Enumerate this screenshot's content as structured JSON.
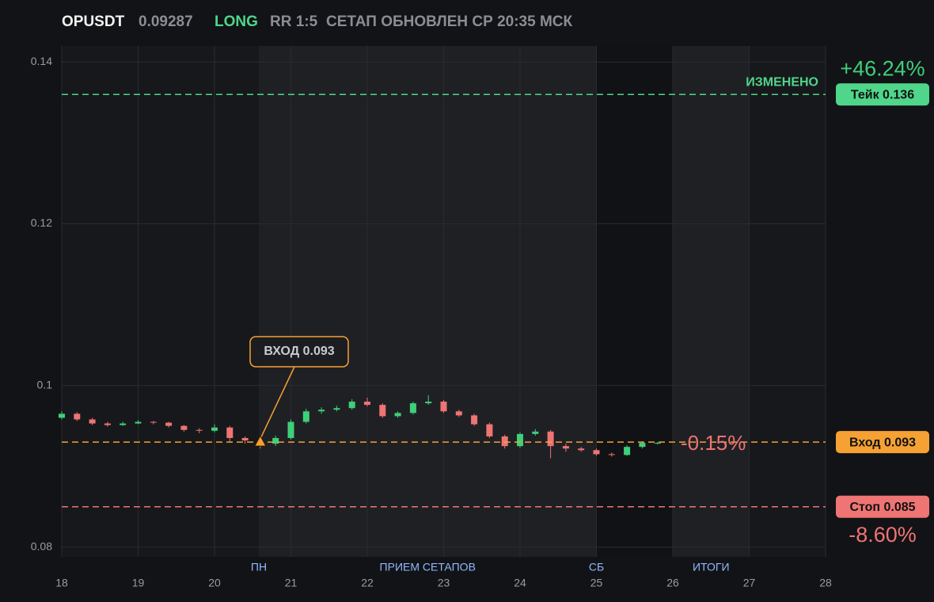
{
  "chart_data": {
    "type": "candlestick",
    "header": {
      "symbol": "OPUSDT",
      "price": "0.09287",
      "side": "LONG",
      "rr": "RR 1:5",
      "updated": "СЕТАП ОБНОВЛЕН СР 20:35 МСК"
    },
    "xlim": [
      18,
      28
    ],
    "xticks": [
      18,
      19,
      20,
      21,
      22,
      23,
      24,
      25,
      26,
      27,
      28
    ],
    "ylim": [
      0.0788,
      0.142
    ],
    "yticks": [
      0.08,
      0.1,
      0.12,
      0.14
    ],
    "grid": true,
    "up_color": "#3fcf7a",
    "down_color": "#ef7474",
    "x": [
      18.0,
      18.2,
      18.4,
      18.6,
      18.8,
      19.0,
      19.2,
      19.4,
      19.6,
      19.8,
      20.0,
      20.2,
      20.4,
      20.6,
      20.8,
      21.0,
      21.2,
      21.4,
      21.6,
      21.8,
      22.0,
      22.2,
      22.4,
      22.6,
      22.8,
      23.0,
      23.2,
      23.4,
      23.6,
      23.8,
      24.0,
      24.2,
      24.4,
      24.6,
      24.8,
      25.0,
      25.2,
      25.4,
      25.6,
      25.8
    ],
    "open": [
      0.096,
      0.0965,
      0.0958,
      0.0953,
      0.0951,
      0.0953,
      0.0955,
      0.0954,
      0.095,
      0.0945,
      0.0944,
      0.0948,
      0.0935,
      0.0932,
      0.0928,
      0.0935,
      0.0955,
      0.0968,
      0.097,
      0.0972,
      0.098,
      0.0976,
      0.0962,
      0.0966,
      0.0978,
      0.098,
      0.0968,
      0.0963,
      0.0952,
      0.0937,
      0.0925,
      0.094,
      0.0943,
      0.0925,
      0.0922,
      0.092,
      0.0915,
      0.0914,
      0.0924,
      0.0929
    ],
    "high": [
      0.0968,
      0.0967,
      0.096,
      0.0955,
      0.0955,
      0.0957,
      0.0956,
      0.0955,
      0.0951,
      0.0947,
      0.0952,
      0.095,
      0.0937,
      0.0934,
      0.0938,
      0.0958,
      0.0971,
      0.0973,
      0.0975,
      0.0983,
      0.0985,
      0.0978,
      0.0968,
      0.098,
      0.0988,
      0.0982,
      0.097,
      0.0965,
      0.0954,
      0.0939,
      0.0942,
      0.0946,
      0.0945,
      0.0928,
      0.0924,
      0.0922,
      0.0917,
      0.0926,
      0.0931,
      0.093
    ],
    "low": [
      0.0958,
      0.0956,
      0.0951,
      0.0949,
      0.095,
      0.0952,
      0.0952,
      0.0948,
      0.0943,
      0.0941,
      0.0942,
      0.093,
      0.0928,
      0.0922,
      0.0925,
      0.0933,
      0.0953,
      0.0965,
      0.0968,
      0.097,
      0.0974,
      0.096,
      0.096,
      0.0964,
      0.0976,
      0.0966,
      0.0961,
      0.095,
      0.0935,
      0.0922,
      0.0923,
      0.0938,
      0.091,
      0.0918,
      0.0918,
      0.0913,
      0.0912,
      0.0913,
      0.0922,
      0.0927
    ],
    "close": [
      0.0965,
      0.0958,
      0.0953,
      0.0951,
      0.0953,
      0.0955,
      0.0954,
      0.095,
      0.0945,
      0.0944,
      0.0948,
      0.0935,
      0.0932,
      0.0928,
      0.0935,
      0.0955,
      0.0968,
      0.097,
      0.0972,
      0.098,
      0.0976,
      0.0962,
      0.0966,
      0.0978,
      0.098,
      0.0968,
      0.0963,
      0.0952,
      0.0937,
      0.0925,
      0.094,
      0.0943,
      0.0925,
      0.0922,
      0.092,
      0.0915,
      0.0914,
      0.0924,
      0.0929,
      0.0929
    ],
    "bands": [
      {
        "start": 20.58,
        "end": 25,
        "color": "#1f2024"
      },
      {
        "start": 25,
        "end": 26,
        "color": "#111215"
      },
      {
        "start": 26,
        "end": 27,
        "color": "#1f2024"
      }
    ],
    "x_markers": [
      {
        "x": 20.58,
        "label": "ПН"
      },
      {
        "x": 22.79,
        "label": "ПРИЕМ СЕТАПОВ"
      },
      {
        "x": 25,
        "label": "СБ"
      },
      {
        "x": 26.5,
        "label": "ИТОГИ"
      }
    ],
    "levels": [
      {
        "value": 0.136,
        "label": "Тейк 0.136",
        "change": "+46.24%",
        "note": "ИЗМЕНЕНО",
        "color": "#4fd68a"
      },
      {
        "value": 0.093,
        "label": "Вход 0.093",
        "change": "-0.15%",
        "color": "#f5a133"
      },
      {
        "value": 0.085,
        "label": "Стоп 0.085",
        "change": "-8.60%",
        "color": "#ef7474"
      }
    ],
    "annotation": {
      "text": "ВХОД 0.093",
      "x": 20.6,
      "y": 0.093,
      "color": "#f5a133"
    }
  }
}
